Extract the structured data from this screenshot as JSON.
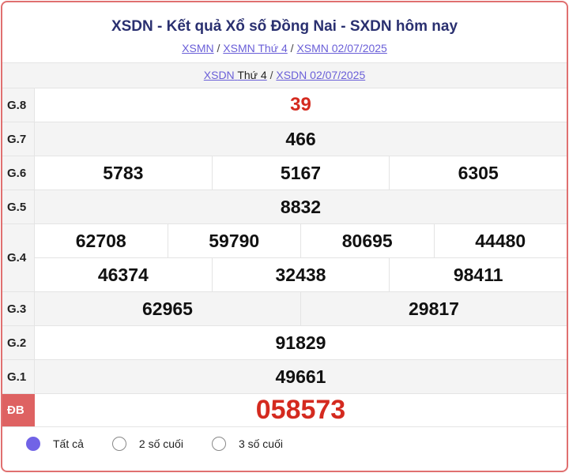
{
  "title": "XSDN - Kết quả Xổ số Đồng Nai - SXDN hôm nay",
  "breadcrumb": [
    "XSMN",
    "XSMN Thứ 4",
    "XSMN 02/07/2025"
  ],
  "sub": {
    "link1_a": "XSDN",
    "link1_b": "Thứ 4",
    "link2": "XSDN 02/07/2025"
  },
  "prizes": {
    "g8": {
      "label": "G.8",
      "values": [
        "39"
      ]
    },
    "g7": {
      "label": "G.7",
      "values": [
        "466"
      ]
    },
    "g6": {
      "label": "G.6",
      "values": [
        "5783",
        "5167",
        "6305"
      ]
    },
    "g5": {
      "label": "G.5",
      "values": [
        "8832"
      ]
    },
    "g4": {
      "label": "G.4",
      "values": [
        "62708",
        "59790",
        "80695",
        "44480",
        "46374",
        "32438",
        "98411"
      ]
    },
    "g3": {
      "label": "G.3",
      "values": [
        "62965",
        "29817"
      ]
    },
    "g2": {
      "label": "G.2",
      "values": [
        "91829"
      ]
    },
    "g1": {
      "label": "G.1",
      "values": [
        "49661"
      ]
    },
    "db": {
      "label": "ĐB",
      "values": [
        "058573"
      ]
    }
  },
  "filters": [
    {
      "label": "Tất cả",
      "selected": true
    },
    {
      "label": "2 số cuối",
      "selected": false
    },
    {
      "label": "3 số cuối",
      "selected": false
    }
  ],
  "colors": {
    "accent": "#7163e6",
    "special": "#d42a1f",
    "border": "#e07070"
  }
}
